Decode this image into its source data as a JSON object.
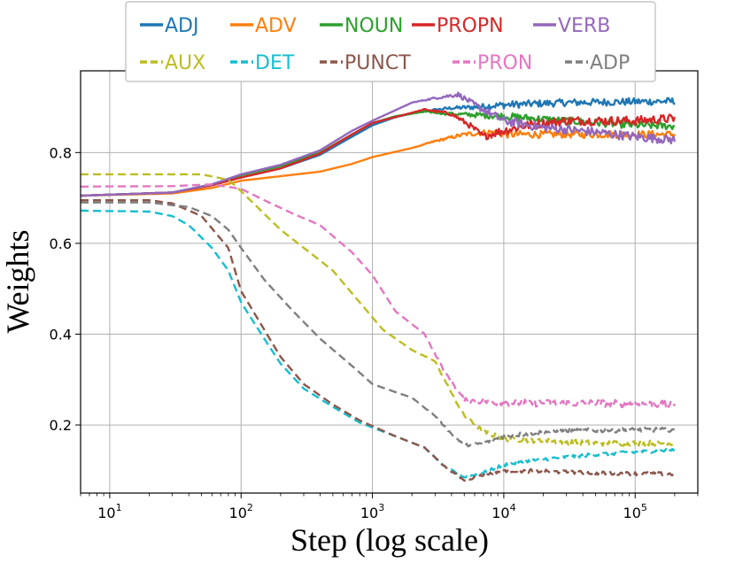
{
  "chart_data": {
    "type": "line",
    "xlabel": "Step (log scale)",
    "ylabel": "Weights",
    "xscale": "log",
    "xlim": [
      6,
      300000
    ],
    "ylim": [
      0.05,
      0.98
    ],
    "grid": true,
    "legend_placement": "top-center",
    "x_ticks": [
      {
        "base": "10",
        "exp": "1",
        "value": 10
      },
      {
        "base": "10",
        "exp": "2",
        "value": 100
      },
      {
        "base": "10",
        "exp": "3",
        "value": 1000
      },
      {
        "base": "10",
        "exp": "4",
        "value": 10000
      },
      {
        "base": "10",
        "exp": "5",
        "value": 100000
      }
    ],
    "y_ticks": [
      {
        "label": "0.2",
        "value": 0.2
      },
      {
        "label": "0.4",
        "value": 0.4
      },
      {
        "label": "0.6",
        "value": 0.6
      },
      {
        "label": "0.8",
        "value": 0.8
      }
    ],
    "series": [
      {
        "name": "ADJ",
        "color": "#1f77b4",
        "dash": "solid",
        "noise": 0.008,
        "points": [
          [
            6,
            0.705
          ],
          [
            30,
            0.712
          ],
          [
            60,
            0.728
          ],
          [
            100,
            0.745
          ],
          [
            200,
            0.765
          ],
          [
            400,
            0.795
          ],
          [
            700,
            0.835
          ],
          [
            1000,
            0.86
          ],
          [
            1500,
            0.878
          ],
          [
            2500,
            0.892
          ],
          [
            4000,
            0.898
          ],
          [
            6000,
            0.9
          ],
          [
            10000,
            0.905
          ],
          [
            30000,
            0.91
          ],
          [
            100000,
            0.912
          ],
          [
            200000,
            0.913
          ]
        ]
      },
      {
        "name": "ADV",
        "color": "#ff7f0e",
        "dash": "solid",
        "noise": 0.008,
        "points": [
          [
            6,
            0.705
          ],
          [
            30,
            0.71
          ],
          [
            60,
            0.722
          ],
          [
            100,
            0.738
          ],
          [
            200,
            0.748
          ],
          [
            400,
            0.758
          ],
          [
            700,
            0.775
          ],
          [
            1000,
            0.79
          ],
          [
            2000,
            0.81
          ],
          [
            3000,
            0.825
          ],
          [
            5000,
            0.84
          ],
          [
            8000,
            0.845
          ],
          [
            10000,
            0.84
          ],
          [
            50000,
            0.84
          ],
          [
            200000,
            0.84
          ]
        ]
      },
      {
        "name": "NOUN",
        "color": "#2ca02c",
        "dash": "solid",
        "noise": 0.008,
        "points": [
          [
            6,
            0.705
          ],
          [
            30,
            0.712
          ],
          [
            60,
            0.73
          ],
          [
            100,
            0.75
          ],
          [
            200,
            0.77
          ],
          [
            400,
            0.8
          ],
          [
            700,
            0.84
          ],
          [
            1000,
            0.865
          ],
          [
            1500,
            0.88
          ],
          [
            2500,
            0.89
          ],
          [
            4000,
            0.885
          ],
          [
            7000,
            0.882
          ],
          [
            10000,
            0.88
          ],
          [
            30000,
            0.87
          ],
          [
            100000,
            0.86
          ],
          [
            200000,
            0.858
          ]
        ]
      },
      {
        "name": "PROPN",
        "color": "#d62728",
        "dash": "solid",
        "noise": 0.01,
        "points": [
          [
            6,
            0.705
          ],
          [
            30,
            0.712
          ],
          [
            60,
            0.728
          ],
          [
            100,
            0.745
          ],
          [
            200,
            0.765
          ],
          [
            400,
            0.798
          ],
          [
            700,
            0.84
          ],
          [
            1000,
            0.865
          ],
          [
            2500,
            0.895
          ],
          [
            4000,
            0.885
          ],
          [
            5500,
            0.86
          ],
          [
            7000,
            0.835
          ],
          [
            9000,
            0.845
          ],
          [
            15000,
            0.86
          ],
          [
            30000,
            0.87
          ],
          [
            100000,
            0.87
          ],
          [
            200000,
            0.875
          ]
        ]
      },
      {
        "name": "VERB",
        "color": "#9467bd",
        "dash": "solid",
        "noise": 0.01,
        "points": [
          [
            6,
            0.705
          ],
          [
            30,
            0.712
          ],
          [
            60,
            0.73
          ],
          [
            100,
            0.752
          ],
          [
            200,
            0.773
          ],
          [
            400,
            0.805
          ],
          [
            700,
            0.848
          ],
          [
            1000,
            0.87
          ],
          [
            2000,
            0.91
          ],
          [
            3000,
            0.92
          ],
          [
            4500,
            0.928
          ],
          [
            6000,
            0.905
          ],
          [
            8000,
            0.885
          ],
          [
            10000,
            0.87
          ],
          [
            20000,
            0.855
          ],
          [
            50000,
            0.845
          ],
          [
            100000,
            0.835
          ],
          [
            200000,
            0.828
          ]
        ]
      },
      {
        "name": "AUX",
        "color": "#bcbd22",
        "dash": "dashed",
        "noise": 0.006,
        "points": [
          [
            6,
            0.752
          ],
          [
            30,
            0.752
          ],
          [
            50,
            0.752
          ],
          [
            80,
            0.74
          ],
          [
            100,
            0.715
          ],
          [
            150,
            0.665
          ],
          [
            200,
            0.63
          ],
          [
            300,
            0.59
          ],
          [
            500,
            0.54
          ],
          [
            800,
            0.47
          ],
          [
            1200,
            0.41
          ],
          [
            2000,
            0.365
          ],
          [
            3000,
            0.34
          ],
          [
            4000,
            0.27
          ],
          [
            5000,
            0.22
          ],
          [
            7000,
            0.185
          ],
          [
            10000,
            0.17
          ],
          [
            20000,
            0.165
          ],
          [
            50000,
            0.16
          ],
          [
            200000,
            0.16
          ]
        ]
      },
      {
        "name": "DET",
        "color": "#17becf",
        "dash": "dashed",
        "noise": 0.004,
        "points": [
          [
            6,
            0.672
          ],
          [
            20,
            0.67
          ],
          [
            30,
            0.66
          ],
          [
            40,
            0.64
          ],
          [
            60,
            0.59
          ],
          [
            80,
            0.54
          ],
          [
            100,
            0.47
          ],
          [
            150,
            0.39
          ],
          [
            200,
            0.335
          ],
          [
            300,
            0.28
          ],
          [
            500,
            0.24
          ],
          [
            800,
            0.205
          ],
          [
            1500,
            0.175
          ],
          [
            2500,
            0.15
          ],
          [
            3500,
            0.11
          ],
          [
            5000,
            0.085
          ],
          [
            7000,
            0.095
          ],
          [
            10000,
            0.112
          ],
          [
            20000,
            0.125
          ],
          [
            50000,
            0.135
          ],
          [
            200000,
            0.145
          ]
        ]
      },
      {
        "name": "PUNCT",
        "color": "#8c564b",
        "dash": "dashed",
        "noise": 0.004,
        "points": [
          [
            6,
            0.695
          ],
          [
            20,
            0.695
          ],
          [
            30,
            0.688
          ],
          [
            50,
            0.66
          ],
          [
            80,
            0.59
          ],
          [
            100,
            0.495
          ],
          [
            150,
            0.41
          ],
          [
            200,
            0.35
          ],
          [
            300,
            0.29
          ],
          [
            500,
            0.245
          ],
          [
            800,
            0.21
          ],
          [
            1500,
            0.175
          ],
          [
            2500,
            0.15
          ],
          [
            3500,
            0.11
          ],
          [
            5000,
            0.078
          ],
          [
            7000,
            0.09
          ],
          [
            10000,
            0.1
          ],
          [
            20000,
            0.098
          ],
          [
            50000,
            0.094
          ],
          [
            200000,
            0.092
          ]
        ]
      },
      {
        "name": "PRON",
        "color": "#e377c2",
        "dash": "dashed",
        "noise": 0.008,
        "points": [
          [
            6,
            0.725
          ],
          [
            30,
            0.726
          ],
          [
            60,
            0.73
          ],
          [
            100,
            0.72
          ],
          [
            150,
            0.695
          ],
          [
            250,
            0.665
          ],
          [
            400,
            0.64
          ],
          [
            700,
            0.58
          ],
          [
            1000,
            0.53
          ],
          [
            1500,
            0.45
          ],
          [
            2500,
            0.4
          ],
          [
            3500,
            0.32
          ],
          [
            5000,
            0.255
          ],
          [
            8000,
            0.25
          ],
          [
            20000,
            0.248
          ],
          [
            50000,
            0.248
          ],
          [
            200000,
            0.245
          ]
        ]
      },
      {
        "name": "ADP",
        "color": "#7f7f7f",
        "dash": "dashed",
        "noise": 0.005,
        "points": [
          [
            6,
            0.69
          ],
          [
            20,
            0.69
          ],
          [
            40,
            0.68
          ],
          [
            60,
            0.66
          ],
          [
            80,
            0.63
          ],
          [
            100,
            0.59
          ],
          [
            150,
            0.52
          ],
          [
            250,
            0.45
          ],
          [
            400,
            0.39
          ],
          [
            700,
            0.33
          ],
          [
            1000,
            0.29
          ],
          [
            2000,
            0.26
          ],
          [
            3000,
            0.22
          ],
          [
            4000,
            0.18
          ],
          [
            5000,
            0.155
          ],
          [
            7000,
            0.16
          ],
          [
            10000,
            0.175
          ],
          [
            20000,
            0.185
          ],
          [
            50000,
            0.188
          ],
          [
            200000,
            0.19
          ]
        ]
      }
    ]
  }
}
